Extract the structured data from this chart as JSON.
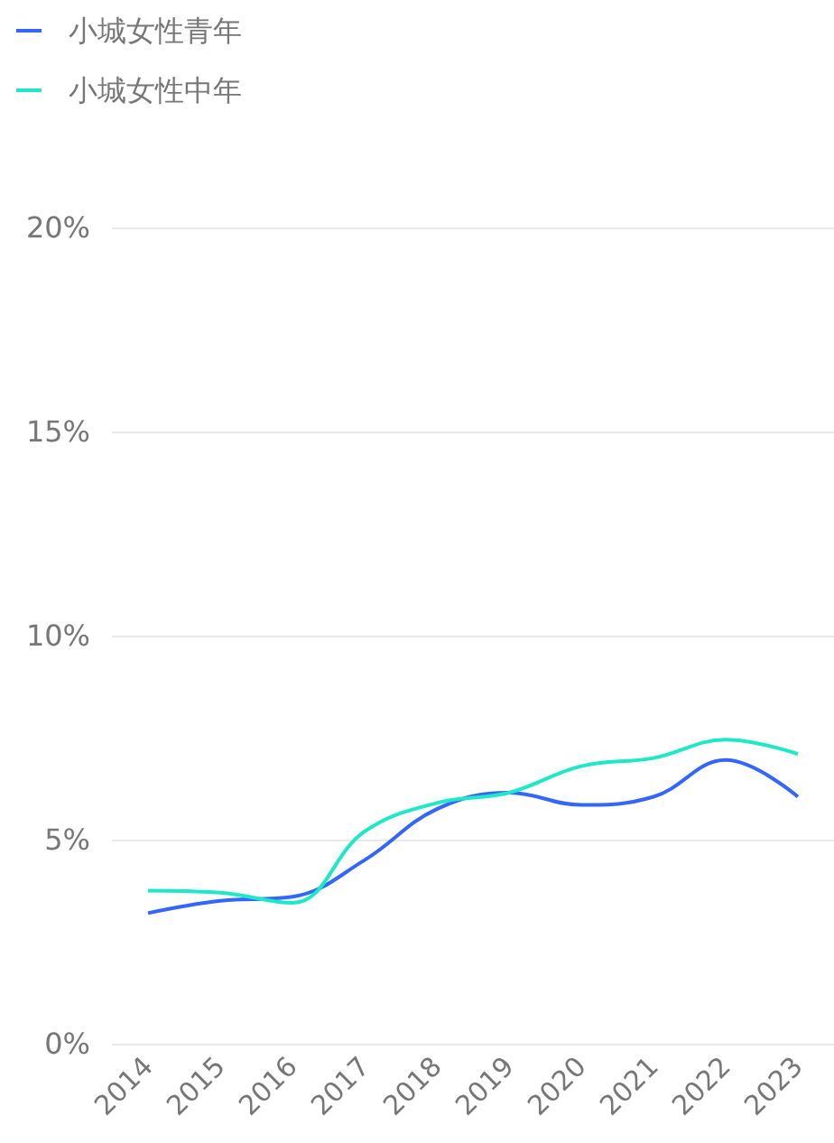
{
  "chart_data": {
    "type": "line",
    "categories": [
      "2014",
      "2015",
      "2016",
      "2017",
      "2018",
      "2019",
      "2020",
      "2021",
      "2022",
      "2023"
    ],
    "series": [
      {
        "name": "小城女性青年",
        "color": "#3366ff",
        "values": [
          3.2,
          3.5,
          3.6,
          4.5,
          5.75,
          6.15,
          5.85,
          6.05,
          6.95,
          6.05
        ]
      },
      {
        "name": "小城女性中年",
        "color": "#1de9c6",
        "values": [
          3.75,
          3.7,
          3.45,
          5.2,
          5.9,
          6.15,
          6.8,
          7.0,
          7.45,
          7.1
        ]
      }
    ],
    "ylim": [
      0,
      20
    ],
    "yticks": [
      {
        "value": 0,
        "label": "0%"
      },
      {
        "value": 5,
        "label": "5%"
      },
      {
        "value": 10,
        "label": "10%"
      },
      {
        "value": 15,
        "label": "15%"
      },
      {
        "value": 20,
        "label": "20%"
      }
    ],
    "grid": "y",
    "legend": "top left",
    "marker": "none",
    "line_style": "solid"
  }
}
